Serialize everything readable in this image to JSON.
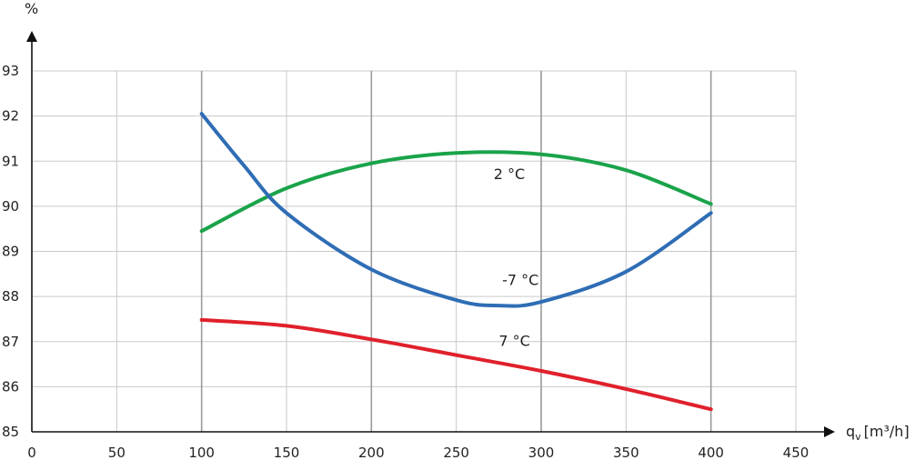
{
  "chart_data": {
    "type": "line",
    "title": "",
    "xlabel_main": "q",
    "xlabel_sub": "v",
    "xlabel_unit": "[m³/h]",
    "ylabel": "%",
    "xlim": [
      0,
      450
    ],
    "ylim": [
      85,
      93
    ],
    "x_ticks": [
      0,
      50,
      100,
      150,
      200,
      250,
      300,
      350,
      400,
      450
    ],
    "y_ticks": [
      85,
      86,
      87,
      88,
      89,
      90,
      91,
      92,
      93
    ],
    "grid": true,
    "legend": "none",
    "series": [
      {
        "name": "2 °C",
        "color": "#1aa34a",
        "points": [
          [
            100,
            89.45
          ],
          [
            150,
            90.4
          ],
          [
            200,
            90.95
          ],
          [
            250,
            91.18
          ],
          [
            300,
            91.15
          ],
          [
            350,
            90.8
          ],
          [
            400,
            90.05
          ]
        ]
      },
      {
        "name": "-7 °C",
        "color": "#2f6db5",
        "points": [
          [
            100,
            92.05
          ],
          [
            125,
            90.9
          ],
          [
            150,
            89.85
          ],
          [
            200,
            88.6
          ],
          [
            250,
            87.92
          ],
          [
            275,
            87.8
          ],
          [
            300,
            87.88
          ],
          [
            350,
            88.55
          ],
          [
            400,
            89.85
          ]
        ]
      },
      {
        "name": "7 °C",
        "color": "#e0202b",
        "points": [
          [
            100,
            87.48
          ],
          [
            150,
            87.35
          ],
          [
            200,
            87.05
          ],
          [
            250,
            86.7
          ],
          [
            300,
            86.35
          ],
          [
            350,
            85.95
          ],
          [
            400,
            85.5
          ]
        ]
      }
    ],
    "series_label_anchor": [
      [
        272,
        90.6
      ],
      [
        277,
        88.25
      ],
      [
        275,
        86.9
      ]
    ]
  }
}
